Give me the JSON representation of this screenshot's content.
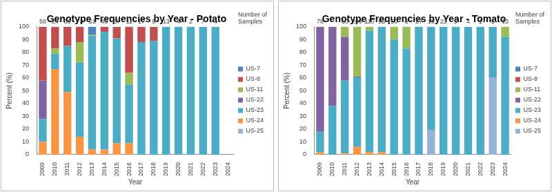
{
  "chart_data": [
    {
      "type": "bar",
      "title": "Genotype Frequencies by Year - Potato",
      "x_label": "Year",
      "y_label": "Percent (%)",
      "categories": [
        "2009",
        "2010",
        "2011",
        "2012",
        "2013",
        "2014",
        "2015",
        "2016",
        "2017",
        "2018",
        "2019",
        "2020",
        "2021",
        "2022",
        "2023",
        "2024"
      ],
      "series": [
        {
          "name": "US-7",
          "color": "#4f81bd",
          "values": [
            0,
            0,
            0,
            0,
            6,
            0,
            0,
            0,
            0,
            0,
            0,
            0,
            0,
            0,
            0,
            null
          ]
        },
        {
          "name": "US-8",
          "color": "#c0504d",
          "values": [
            42,
            17,
            15,
            12,
            0,
            4,
            9,
            36,
            12,
            11,
            0,
            0,
            0,
            0,
            0,
            null
          ]
        },
        {
          "name": "US-11",
          "color": "#9bbb59",
          "values": [
            0,
            4,
            0,
            16,
            1,
            0,
            0,
            9,
            0,
            0,
            0,
            0,
            0,
            0,
            0,
            null
          ]
        },
        {
          "name": "US-22",
          "color": "#8064a2",
          "values": [
            30,
            0,
            0,
            0,
            0,
            0,
            0,
            0,
            0,
            0,
            0,
            0,
            0,
            0,
            0,
            null
          ]
        },
        {
          "name": "US-23",
          "color": "#4bacc6",
          "values": [
            18,
            12,
            36,
            58,
            89,
            92,
            82,
            46,
            88,
            89,
            100,
            100,
            100,
            100,
            100,
            null
          ]
        },
        {
          "name": "US-24",
          "color": "#f79646",
          "values": [
            10,
            67,
            49,
            14,
            4,
            4,
            9,
            9,
            0,
            0,
            0,
            0,
            0,
            0,
            0,
            null
          ]
        },
        {
          "name": "US-25",
          "color": "#95b3d7",
          "values": [
            0,
            0,
            0,
            0,
            0,
            0,
            0,
            0,
            0,
            0,
            0,
            0,
            0,
            0,
            0,
            null
          ]
        }
      ],
      "sample_counts": {
        "label": "Number of Samples",
        "values": [
          58,
          24,
          39,
          73,
          51,
          48,
          67,
          11,
          17,
          9,
          13,
          4,
          2,
          7,
          4,
          null
        ]
      },
      "ylim": [
        0,
        100
      ],
      "yticks": [
        0,
        10,
        20,
        30,
        40,
        50,
        60,
        70,
        80,
        90,
        100
      ],
      "stacked": true,
      "grid": false,
      "legend": "right"
    },
    {
      "type": "bar",
      "title": "Genotype Frequencies by Year - Tomato",
      "x_label": "Year",
      "y_label": "Percent (%)",
      "categories": [
        "2009",
        "2010",
        "2011",
        "2012",
        "2013",
        "2014",
        "2015",
        "2016",
        "2017",
        "2018",
        "2019",
        "2020",
        "2021",
        "2022",
        "2023",
        "2024"
      ],
      "series": [
        {
          "name": "US-7",
          "color": "#4f81bd",
          "values": [
            0,
            0,
            0,
            0,
            0,
            0,
            0,
            0,
            0,
            0,
            0,
            0,
            0,
            0,
            0,
            0
          ]
        },
        {
          "name": "US-8",
          "color": "#c0504d",
          "values": [
            0,
            0,
            0,
            0,
            0,
            0,
            0,
            0,
            0,
            0,
            0,
            0,
            0,
            0,
            0,
            0
          ]
        },
        {
          "name": "US-11",
          "color": "#9bbb59",
          "values": [
            0,
            0,
            8,
            39,
            3,
            0,
            10,
            17,
            0,
            0,
            0,
            0,
            0,
            0,
            0,
            8
          ]
        },
        {
          "name": "US-22",
          "color": "#8064a2",
          "values": [
            82,
            62,
            34,
            1,
            0,
            0,
            0,
            0,
            0,
            0,
            0,
            0,
            0,
            0,
            0,
            0
          ]
        },
        {
          "name": "US-23",
          "color": "#4bacc6",
          "values": [
            16,
            38,
            57,
            54,
            95,
            98,
            90,
            83,
            100,
            81,
            100,
            100,
            100,
            100,
            40,
            92
          ]
        },
        {
          "name": "US-24",
          "color": "#f79646",
          "values": [
            2,
            0,
            1,
            6,
            2,
            2,
            0,
            0,
            0,
            0,
            0,
            0,
            0,
            0,
            0,
            0
          ]
        },
        {
          "name": "US-25",
          "color": "#95b3d7",
          "values": [
            0,
            0,
            0,
            0,
            0,
            0,
            0,
            0,
            0,
            19,
            0,
            0,
            0,
            0,
            60,
            0
          ]
        }
      ],
      "sample_counts": {
        "label": "Number of Samples",
        "values": [
          78,
          null,
          60,
          209,
          110,
          95,
          50,
          6,
          27,
          16,
          22,
          5,
          4,
          1,
          5,
          13
        ]
      },
      "ylim": [
        0,
        100
      ],
      "yticks": [
        0,
        10,
        20,
        30,
        40,
        50,
        60,
        70,
        80,
        90,
        100
      ],
      "stacked": true,
      "grid": false,
      "legend": "right"
    }
  ]
}
